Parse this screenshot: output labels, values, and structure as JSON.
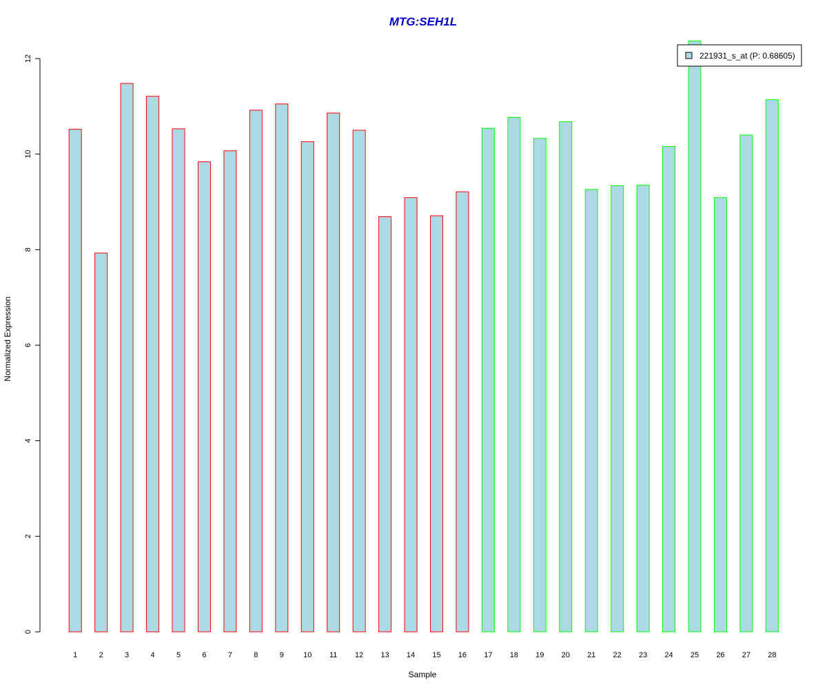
{
  "chart_data": {
    "type": "bar",
    "title": "MTG:SEH1L",
    "xlabel": "Sample",
    "ylabel": "Normalized Expression",
    "ylim": [
      0,
      12
    ],
    "yticks": [
      0,
      2,
      4,
      6,
      8,
      10,
      12
    ],
    "grid": false,
    "legend": {
      "placement": "top-right",
      "entries": [
        {
          "label": "221931_s_at (P: 0.68605)",
          "fill": "#add8e6"
        }
      ]
    },
    "categories": [
      "1",
      "2",
      "3",
      "4",
      "5",
      "6",
      "7",
      "8",
      "9",
      "10",
      "11",
      "12",
      "13",
      "14",
      "15",
      "16",
      "17",
      "18",
      "19",
      "20",
      "21",
      "22",
      "23",
      "24",
      "25",
      "26",
      "27",
      "28"
    ],
    "series": [
      {
        "values": [
          10.52,
          7.93,
          11.48,
          11.21,
          10.53,
          9.84,
          10.07,
          10.92,
          11.05,
          10.26,
          10.86,
          10.5,
          8.69,
          9.09,
          8.71,
          9.21,
          10.54,
          10.77,
          10.33,
          10.68,
          9.26,
          9.34,
          9.35,
          10.16,
          12.37,
          9.09,
          10.4,
          11.14
        ],
        "fill": "#add8e6",
        "border_colors": [
          "#ff0000",
          "#ff0000",
          "#ff0000",
          "#ff0000",
          "#ff0000",
          "#ff0000",
          "#ff0000",
          "#ff0000",
          "#ff0000",
          "#ff0000",
          "#ff0000",
          "#ff0000",
          "#ff0000",
          "#ff0000",
          "#ff0000",
          "#ff0000",
          "#00ff00",
          "#00ff00",
          "#00ff00",
          "#00ff00",
          "#00ff00",
          "#00ff00",
          "#00ff00",
          "#00ff00",
          "#00ff00",
          "#00ff00",
          "#00ff00",
          "#00ff00"
        ]
      }
    ],
    "title_color": "#0000cc"
  }
}
